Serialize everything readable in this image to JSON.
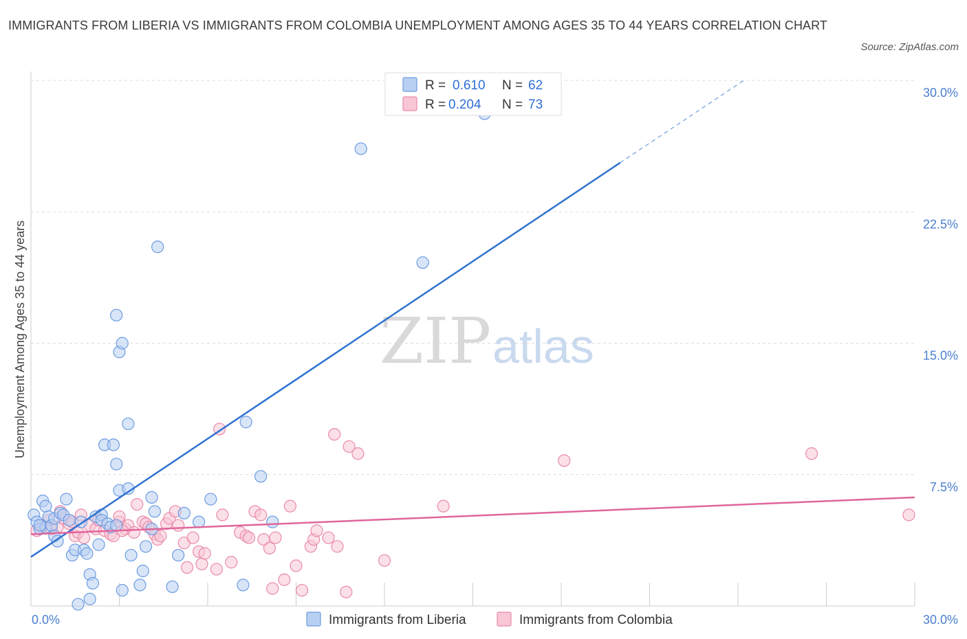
{
  "title": "IMMIGRANTS FROM LIBERIA VS IMMIGRANTS FROM COLOMBIA UNEMPLOYMENT AMONG AGES 35 TO 44 YEARS CORRELATION CHART",
  "source": "Source: ZipAtlas.com",
  "watermark": {
    "zip": "ZIP",
    "atlas": "atlas"
  },
  "colors": {
    "liberia_fill": "#b8d0f2",
    "liberia_stroke": "#6c9be0",
    "liberia_line": "#2f72d0",
    "colombia_fill": "#f8c6d5",
    "colombia_stroke": "#e98aa9",
    "colombia_line": "#e0659a",
    "tick_label": "#4a7fd0"
  },
  "legend": {
    "rows": [
      {
        "r_label": "R =",
        "r_value": "0.610",
        "n_label": "N =",
        "n_value": "62"
      },
      {
        "r_label": "R =",
        "r_value": "0.204",
        "n_label": "N =",
        "n_value": "73"
      }
    ]
  },
  "chart_data": {
    "type": "scatter",
    "title": "IMMIGRANTS FROM LIBERIA VS IMMIGRANTS FROM COLOMBIA UNEMPLOYMENT AMONG AGES 35 TO 44 YEARS CORRELATION CHART",
    "xlabel": "",
    "ylabel": "Unemployment Among Ages 35 to 44 years",
    "xlim": [
      0,
      30
    ],
    "ylim": [
      0,
      30
    ],
    "x_tick_labels": [
      "0.0%",
      "30.0%"
    ],
    "y_ticks": [
      7.5,
      15.0,
      22.5,
      30.0
    ],
    "y_tick_labels": [
      "7.5%",
      "15.0%",
      "22.5%",
      "30.0%"
    ],
    "grid": true,
    "legend_position": "top-center",
    "series": [
      {
        "name": "Immigrants from Liberia",
        "R": 0.61,
        "N": 62,
        "trend": {
          "x0": 0,
          "y0": 2.8,
          "x1": 20,
          "y1": 25.3,
          "dashed_to_x": 24.2,
          "dashed_to_y": 30.0
        },
        "points": [
          [
            0.1,
            5.2
          ],
          [
            0.2,
            4.8
          ],
          [
            0.3,
            4.4
          ],
          [
            0.4,
            6.0
          ],
          [
            0.5,
            5.7
          ],
          [
            0.5,
            4.5
          ],
          [
            0.6,
            5.1
          ],
          [
            0.7,
            4.6
          ],
          [
            0.8,
            5.0
          ],
          [
            0.8,
            4.0
          ],
          [
            0.9,
            3.7
          ],
          [
            1.0,
            5.3
          ],
          [
            1.1,
            5.2
          ],
          [
            1.2,
            6.1
          ],
          [
            1.3,
            4.9
          ],
          [
            1.4,
            2.9
          ],
          [
            1.5,
            3.2
          ],
          [
            1.6,
            0.1
          ],
          [
            1.7,
            4.8
          ],
          [
            1.8,
            3.2
          ],
          [
            1.9,
            3.0
          ],
          [
            2.0,
            1.8
          ],
          [
            2.0,
            0.4
          ],
          [
            2.1,
            1.3
          ],
          [
            2.2,
            5.1
          ],
          [
            2.3,
            3.5
          ],
          [
            2.4,
            5.2
          ],
          [
            2.4,
            4.9
          ],
          [
            2.5,
            9.2
          ],
          [
            2.6,
            4.7
          ],
          [
            2.7,
            4.5
          ],
          [
            2.8,
            9.2
          ],
          [
            2.9,
            8.1
          ],
          [
            2.9,
            16.6
          ],
          [
            3.0,
            6.6
          ],
          [
            3.0,
            14.5
          ],
          [
            3.1,
            15.0
          ],
          [
            3.1,
            0.9
          ],
          [
            3.3,
            6.7
          ],
          [
            3.3,
            10.4
          ],
          [
            3.4,
            2.9
          ],
          [
            3.7,
            1.2
          ],
          [
            3.8,
            2.0
          ],
          [
            3.9,
            3.4
          ],
          [
            4.1,
            6.2
          ],
          [
            4.1,
            4.4
          ],
          [
            4.2,
            5.4
          ],
          [
            4.3,
            20.5
          ],
          [
            4.8,
            1.1
          ],
          [
            5.0,
            2.9
          ],
          [
            5.2,
            5.3
          ],
          [
            5.7,
            4.8
          ],
          [
            6.1,
            6.1
          ],
          [
            7.2,
            1.2
          ],
          [
            7.3,
            10.5
          ],
          [
            7.8,
            7.4
          ],
          [
            8.2,
            4.8
          ],
          [
            11.2,
            26.1
          ],
          [
            13.3,
            19.6
          ],
          [
            15.4,
            28.1
          ],
          [
            0.3,
            4.6
          ],
          [
            2.9,
            4.6
          ]
        ]
      },
      {
        "name": "Immigrants from Colombia",
        "R": 0.204,
        "N": 73,
        "trend": {
          "x0": 0,
          "y0": 4.1,
          "x1": 30,
          "y1": 6.2
        },
        "points": [
          [
            0.2,
            4.3
          ],
          [
            0.4,
            4.6
          ],
          [
            0.6,
            4.9
          ],
          [
            0.7,
            4.4
          ],
          [
            0.9,
            4.5
          ],
          [
            1.0,
            5.4
          ],
          [
            1.1,
            5.0
          ],
          [
            1.3,
            4.7
          ],
          [
            1.5,
            4.0
          ],
          [
            1.6,
            4.2
          ],
          [
            1.7,
            5.2
          ],
          [
            1.8,
            3.9
          ],
          [
            2.0,
            4.6
          ],
          [
            2.2,
            4.4
          ],
          [
            2.3,
            4.9
          ],
          [
            2.5,
            4.3
          ],
          [
            2.7,
            4.1
          ],
          [
            2.8,
            4.0
          ],
          [
            3.0,
            4.8
          ],
          [
            3.0,
            5.1
          ],
          [
            3.2,
            4.4
          ],
          [
            3.3,
            4.6
          ],
          [
            3.5,
            4.2
          ],
          [
            3.6,
            5.8
          ],
          [
            3.8,
            4.8
          ],
          [
            3.9,
            4.7
          ],
          [
            4.0,
            4.5
          ],
          [
            4.2,
            4.1
          ],
          [
            4.3,
            3.8
          ],
          [
            4.4,
            4.0
          ],
          [
            4.6,
            4.7
          ],
          [
            4.7,
            5.0
          ],
          [
            4.9,
            5.4
          ],
          [
            5.0,
            4.6
          ],
          [
            5.2,
            3.6
          ],
          [
            5.3,
            2.2
          ],
          [
            5.5,
            3.9
          ],
          [
            5.7,
            3.1
          ],
          [
            5.8,
            2.4
          ],
          [
            5.9,
            3.0
          ],
          [
            6.3,
            2.1
          ],
          [
            6.4,
            10.1
          ],
          [
            6.5,
            5.2
          ],
          [
            6.8,
            2.5
          ],
          [
            7.1,
            4.2
          ],
          [
            7.3,
            4.0
          ],
          [
            7.4,
            3.9
          ],
          [
            7.6,
            5.4
          ],
          [
            7.8,
            5.2
          ],
          [
            7.9,
            3.8
          ],
          [
            8.1,
            3.3
          ],
          [
            8.2,
            1.0
          ],
          [
            8.3,
            3.9
          ],
          [
            8.6,
            1.5
          ],
          [
            8.8,
            5.7
          ],
          [
            9.0,
            2.3
          ],
          [
            9.2,
            0.9
          ],
          [
            9.5,
            3.4
          ],
          [
            9.6,
            3.8
          ],
          [
            9.7,
            4.3
          ],
          [
            10.1,
            3.9
          ],
          [
            10.3,
            9.8
          ],
          [
            10.4,
            3.4
          ],
          [
            10.7,
            0.8
          ],
          [
            10.8,
            9.1
          ],
          [
            11.1,
            8.7
          ],
          [
            12.0,
            2.6
          ],
          [
            14.0,
            5.7
          ],
          [
            18.1,
            8.3
          ],
          [
            26.5,
            8.7
          ],
          [
            29.8,
            5.2
          ],
          [
            3.1,
            4.3
          ],
          [
            1.4,
            4.8
          ]
        ]
      }
    ]
  },
  "bottom_legend": [
    "Immigrants from Liberia",
    "Immigrants from Colombia"
  ]
}
